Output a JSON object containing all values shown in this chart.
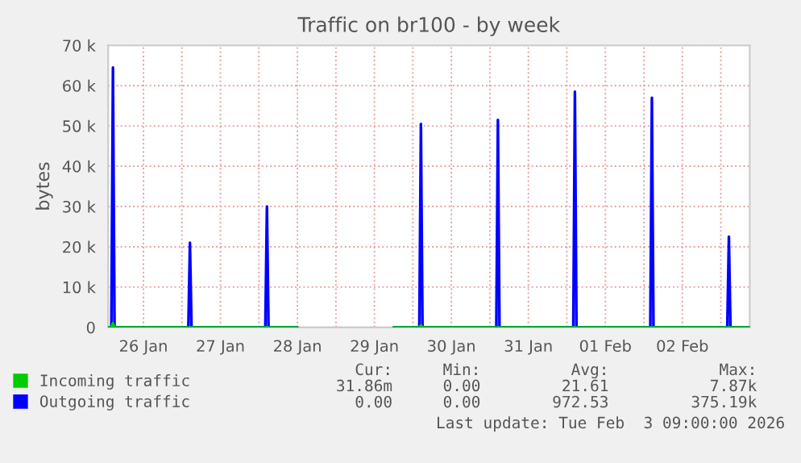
{
  "chart_data": {
    "type": "area",
    "title": "Traffic on br100 - by week",
    "ylabel": "bytes",
    "xlim": [
      "2026-01-26T01:00",
      "2026-02-03T09:00"
    ],
    "xticks": [
      {
        "value": "2026-01-26T12:00",
        "label": "26 Jan"
      },
      {
        "value": "2026-01-27T12:00",
        "label": "27 Jan"
      },
      {
        "value": "2026-01-28T12:00",
        "label": "28 Jan"
      },
      {
        "value": "2026-01-29T12:00",
        "label": "29 Jan"
      },
      {
        "value": "2026-01-30T12:00",
        "label": "30 Jan"
      },
      {
        "value": "2026-01-31T12:00",
        "label": "31 Jan"
      },
      {
        "value": "2026-02-01T12:00",
        "label": "01 Feb"
      },
      {
        "value": "2026-02-02T12:00",
        "label": "02 Feb"
      },
      {
        "value": "2026-01-27T00:00",
        "label": null
      },
      {
        "value": "2026-01-28T00:00",
        "label": null
      },
      {
        "value": "2026-01-29T00:00",
        "label": null
      },
      {
        "value": "2026-01-30T00:00",
        "label": null
      },
      {
        "value": "2026-01-31T00:00",
        "label": null
      },
      {
        "value": "2026-02-01T00:00",
        "label": null
      },
      {
        "value": "2026-02-02T00:00",
        "label": null
      },
      {
        "value": "2026-02-03T00:00",
        "label": null
      }
    ],
    "ylim": [
      0,
      70000
    ],
    "yticks": [
      {
        "value": 0,
        "label": "0"
      },
      {
        "value": 10000,
        "label": "10 k"
      },
      {
        "value": 20000,
        "label": "20 k"
      },
      {
        "value": 30000,
        "label": "30 k"
      },
      {
        "value": 40000,
        "label": "40 k"
      },
      {
        "value": 50000,
        "label": "50 k"
      },
      {
        "value": 60000,
        "label": "60 k"
      },
      {
        "value": 70000,
        "label": "70 k"
      }
    ],
    "grid": true,
    "legend": "bottom left",
    "series": [
      {
        "name": "Incoming traffic",
        "color": "#00cc00",
        "x": [
          "2026-01-26T01:00",
          "2026-01-26T02:00",
          "2026-01-26T02:30",
          "2026-01-26T03:00",
          "2026-01-28T12:00",
          "2026-01-28T13:00",
          "2026-01-29T18:00",
          "2026-01-30T02:00",
          "2026-01-30T02:30",
          "2026-01-30T03:00",
          "2026-02-03T09:00"
        ],
        "values": [
          0,
          0,
          1000,
          0,
          0,
          null,
          0,
          0,
          500,
          0,
          0
        ]
      },
      {
        "name": "Outgoing traffic",
        "color": "#0000ff",
        "x": [
          "2026-01-26T01:00",
          "2026-01-26T02:00",
          "2026-01-26T02:30",
          "2026-01-26T03:00",
          "2026-01-27T02:00",
          "2026-01-27T02:30",
          "2026-01-27T03:00",
          "2026-01-28T02:00",
          "2026-01-28T02:30",
          "2026-01-28T03:00",
          "2026-01-28T12:00",
          "2026-01-28T13:00",
          "2026-01-29T18:00",
          "2026-01-30T02:00",
          "2026-01-30T02:30",
          "2026-01-30T03:00",
          "2026-01-31T02:00",
          "2026-01-31T02:30",
          "2026-01-31T03:00",
          "2026-02-01T02:00",
          "2026-02-01T02:30",
          "2026-02-01T03:00",
          "2026-02-02T02:00",
          "2026-02-02T02:30",
          "2026-02-02T03:00",
          "2026-02-03T02:00",
          "2026-02-03T02:30",
          "2026-02-03T03:00",
          "2026-02-03T09:00"
        ],
        "values": [
          0,
          0,
          64500,
          0,
          0,
          21000,
          0,
          0,
          30000,
          0,
          0,
          null,
          0,
          0,
          50500,
          0,
          0,
          51500,
          0,
          0,
          58500,
          0,
          0,
          57000,
          0,
          0,
          22500,
          0,
          0
        ]
      }
    ],
    "annotations": [
      "Cur:",
      "Min:",
      "Avg:",
      "Max:",
      "31.86m",
      "0.00",
      "21.61",
      "7.87k",
      "0.00",
      "0.00",
      "972.53",
      "375.19k",
      "Last update: Tue Feb  3 09:00:00 2026"
    ]
  }
}
